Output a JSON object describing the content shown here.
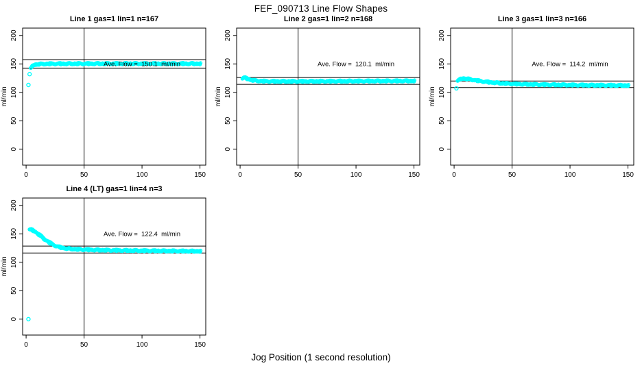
{
  "title": "FEF_090713  Line Flow Shapes",
  "xlabel": "Jog Position (1 second resolution)",
  "colors": {
    "points": "#00FFFF",
    "lines": "#000000",
    "text": "#000000",
    "background": "#FFFFFF"
  },
  "chart_data": {
    "type": "scatter",
    "title": "FEF_090713  Line Flow Shapes",
    "xlabel": "Jog Position (1 second resolution)",
    "ylabel": "ml/min",
    "x_ticks": [
      0,
      50,
      100,
      150
    ],
    "y_ticks": [
      0,
      50,
      100,
      150,
      200
    ],
    "x_range": [
      -3,
      155
    ],
    "y_range": [
      -28,
      213
    ],
    "marker": "open-circle",
    "grid": false,
    "panels": [
      {
        "title": "Line 1 gas=1 lin=1 n=167",
        "annotation": "Ave. Flow =  150.1  ml/min",
        "annotation_xy": [
          100,
          150
        ],
        "ave_flow": 150.1,
        "n": 167,
        "vline_x": 50,
        "hlines": [
          157.6,
          142.6
        ],
        "outliers": [
          [
            2,
            113
          ],
          [
            3,
            132
          ]
        ],
        "curve": [
          [
            4,
            142
          ],
          [
            5,
            146
          ],
          [
            6,
            147.5
          ],
          [
            8,
            148.6
          ],
          [
            10,
            149.2
          ],
          [
            15,
            149.8
          ],
          [
            20,
            150
          ],
          [
            30,
            150.1
          ],
          [
            50,
            150.2
          ],
          [
            70,
            150.3
          ],
          [
            100,
            150.3
          ],
          [
            130,
            150.2
          ],
          [
            150,
            150.2
          ]
        ]
      },
      {
        "title": "Line 2 gas=1 lin=2 n=168",
        "annotation": "Ave. Flow =  120.1  ml/min",
        "annotation_xy": [
          100,
          150
        ],
        "ave_flow": 120.1,
        "n": 168,
        "vline_x": 50,
        "hlines": [
          126.1,
          114.1
        ],
        "outliers": [],
        "curve": [
          [
            2,
            124.5
          ],
          [
            3,
            125.3
          ],
          [
            4,
            125.2
          ],
          [
            5,
            124.6
          ],
          [
            6,
            123.8
          ],
          [
            8,
            122.4
          ],
          [
            10,
            121.3
          ],
          [
            13,
            120.3
          ],
          [
            16,
            119.8
          ],
          [
            20,
            119.4
          ],
          [
            25,
            119.2
          ],
          [
            30,
            119.1
          ],
          [
            40,
            119.0
          ],
          [
            50,
            119.0
          ],
          [
            60,
            119.1
          ],
          [
            80,
            119.3
          ],
          [
            100,
            119.5
          ],
          [
            120,
            119.7
          ],
          [
            150,
            119.9
          ]
        ]
      },
      {
        "title": "Line 3 gas=1 lin=3 n=166",
        "annotation": "Ave. Flow =  114.2  ml/min",
        "annotation_xy": [
          100,
          150
        ],
        "ave_flow": 114.2,
        "n": 166,
        "vline_x": 50,
        "hlines": [
          119.9,
          108.5
        ],
        "outliers": [
          [
            2,
            107
          ]
        ],
        "curve": [
          [
            3,
            119.5
          ],
          [
            4,
            121.5
          ],
          [
            5,
            123
          ],
          [
            6,
            123.8
          ],
          [
            8,
            124.2
          ],
          [
            10,
            123.8
          ],
          [
            13,
            122.8
          ],
          [
            16,
            121.7
          ],
          [
            20,
            120.3
          ],
          [
            25,
            118.8
          ],
          [
            30,
            117.6
          ],
          [
            40,
            115.9
          ],
          [
            50,
            114.7
          ],
          [
            60,
            114
          ],
          [
            80,
            113.2
          ],
          [
            100,
            112.7
          ],
          [
            120,
            112.3
          ],
          [
            150,
            111.9
          ]
        ]
      },
      {
        "title": "Line 4 (LT) gas=1 lin=4 n=3",
        "annotation": "Ave. Flow =  122.4  ml/min",
        "annotation_xy": [
          100,
          150
        ],
        "ave_flow": 122.4,
        "n": 3,
        "vline_x": 50,
        "hlines": [
          128.5,
          116.3
        ],
        "outliers": [
          [
            2,
            0
          ]
        ],
        "curve": [
          [
            3,
            157
          ],
          [
            4,
            157
          ],
          [
            5,
            156.5
          ],
          [
            6,
            155.5
          ],
          [
            8,
            153
          ],
          [
            10,
            150
          ],
          [
            12,
            146.5
          ],
          [
            15,
            141.5
          ],
          [
            18,
            137
          ],
          [
            21,
            133
          ],
          [
            24,
            129.8
          ],
          [
            27,
            127.3
          ],
          [
            30,
            125.6
          ],
          [
            34,
            124.2
          ],
          [
            38,
            123.3
          ],
          [
            44,
            122.5
          ],
          [
            50,
            122
          ],
          [
            60,
            121.4
          ],
          [
            70,
            121
          ],
          [
            80,
            120.7
          ],
          [
            100,
            120.2
          ],
          [
            120,
            119.8
          ],
          [
            150,
            119.2
          ]
        ]
      }
    ]
  }
}
